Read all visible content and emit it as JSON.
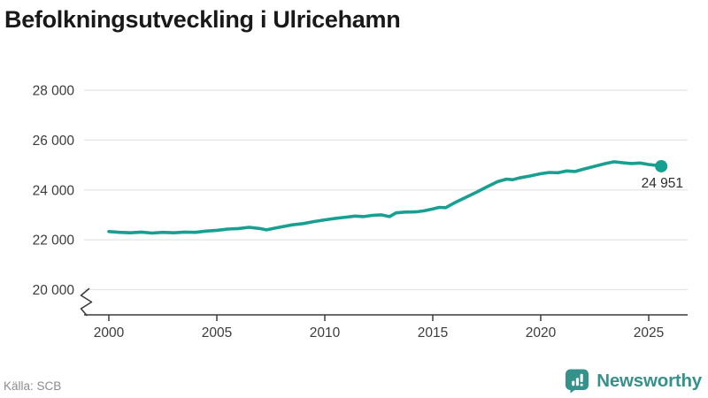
{
  "title": "Befolkningsutveckling i Ulricehamn",
  "source": "Källa: SCB",
  "logo": {
    "text": "Newsworthy",
    "icon": "newsworthy-speech-bubble-bar-chart-icon"
  },
  "colors": {
    "accent": "#17a091",
    "logo_teal": "#35928a",
    "grid": "#e4e4e4",
    "axis": "#3c3c3c",
    "tick_text": "#3c3c3c",
    "title_text": "#191919",
    "muted_text": "#8c8c8c",
    "value_label_text": "#2e2e2e",
    "background": "#ffffff"
  },
  "chart_data": {
    "type": "line",
    "title": "Befolkningsutveckling i Ulricehamn",
    "xlabel": "",
    "ylabel": "",
    "grid": "horizontal",
    "axis_break_at_bottom": true,
    "legend": "none",
    "xlim": [
      2000,
      2025
    ],
    "ylim": [
      20000,
      28000
    ],
    "xticks": [
      {
        "v": 2000,
        "label": "2000"
      },
      {
        "v": 2005,
        "label": "2005"
      },
      {
        "v": 2010,
        "label": "2010"
      },
      {
        "v": 2015,
        "label": "2015"
      },
      {
        "v": 2020,
        "label": "2020"
      },
      {
        "v": 2025,
        "label": "2025"
      }
    ],
    "yticks": [
      {
        "v": 20000,
        "label": "20 000"
      },
      {
        "v": 22000,
        "label": "22 000"
      },
      {
        "v": 24000,
        "label": "24 000"
      },
      {
        "v": 26000,
        "label": "26 000"
      },
      {
        "v": 28000,
        "label": "28 000"
      }
    ],
    "latest_value": 24951,
    "latest_label": "24 951",
    "x": [
      2000.0,
      2000.5,
      2001.0,
      2001.5,
      2002.0,
      2002.5,
      2003.0,
      2003.5,
      2004.0,
      2004.5,
      2005.0,
      2005.5,
      2006.0,
      2006.5,
      2007.0,
      2007.3,
      2007.7,
      2008.0,
      2008.5,
      2009.0,
      2009.5,
      2010.0,
      2010.5,
      2011.0,
      2011.4,
      2011.8,
      2012.2,
      2012.6,
      2013.0,
      2013.3,
      2013.7,
      2014.2,
      2014.6,
      2015.0,
      2015.3,
      2015.6,
      2016.0,
      2016.5,
      2017.0,
      2017.5,
      2018.0,
      2018.4,
      2018.7,
      2019.0,
      2019.5,
      2020.0,
      2020.4,
      2020.8,
      2021.2,
      2021.6,
      2022.0,
      2022.5,
      2023.0,
      2023.4,
      2023.8,
      2024.2,
      2024.6,
      2025.0,
      2025.3,
      2025.58
    ],
    "values": [
      22330,
      22300,
      22280,
      22310,
      22270,
      22300,
      22280,
      22310,
      22300,
      22350,
      22380,
      22430,
      22450,
      22500,
      22450,
      22400,
      22470,
      22520,
      22600,
      22650,
      22730,
      22800,
      22860,
      22910,
      22950,
      22930,
      22980,
      23000,
      22930,
      23080,
      23110,
      23120,
      23160,
      23240,
      23300,
      23290,
      23480,
      23690,
      23900,
      24120,
      24330,
      24430,
      24410,
      24480,
      24560,
      24650,
      24700,
      24690,
      24760,
      24740,
      24840,
      24950,
      25060,
      25130,
      25090,
      25060,
      25080,
      25020,
      24990,
      24951
    ]
  }
}
